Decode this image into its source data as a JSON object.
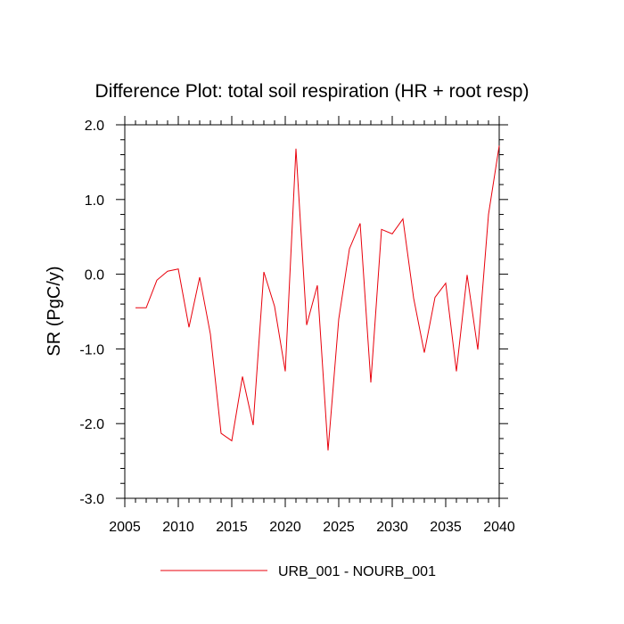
{
  "chart_data": {
    "type": "line",
    "title": "Difference Plot: total soil respiration (HR + root resp)",
    "ylabel": "SR  (PgC/y)",
    "xlabel": "",
    "xlim": [
      2006,
      2040
    ],
    "ylim": [
      -3.0,
      2.0
    ],
    "x_ticks": [
      2005,
      2010,
      2015,
      2020,
      2025,
      2030,
      2035,
      2040
    ],
    "x_tick_labels": [
      "2005",
      "2010",
      "2015",
      "2020",
      "2025",
      "2030",
      "2035",
      "2040"
    ],
    "y_ticks": [
      -3.0,
      -2.0,
      -1.0,
      0.0,
      1.0,
      2.0
    ],
    "y_tick_labels": [
      "-3.0",
      "-2.0",
      "-1.0",
      "0.0",
      "1.0",
      "2.0"
    ],
    "grid": false,
    "legend_position": "bottom-center",
    "series": [
      {
        "name": "URB_001 - NOURB_001",
        "color": "#e8000b",
        "x": [
          2006,
          2007,
          2008,
          2009,
          2010,
          2011,
          2012,
          2013,
          2014,
          2015,
          2016,
          2017,
          2018,
          2019,
          2020,
          2021,
          2022,
          2023,
          2024,
          2025,
          2026,
          2027,
          2028,
          2029,
          2030,
          2031,
          2032,
          2033,
          2034,
          2035,
          2036,
          2037,
          2038,
          2039,
          2040
        ],
        "values": [
          -0.45,
          -0.45,
          -0.08,
          0.04,
          0.07,
          -0.71,
          -0.04,
          -0.8,
          -2.13,
          -2.23,
          -1.37,
          -2.02,
          0.03,
          -0.43,
          -1.3,
          1.68,
          -0.68,
          -0.15,
          -2.36,
          -0.6,
          0.34,
          0.68,
          -1.45,
          0.6,
          0.54,
          0.74,
          -0.32,
          -1.05,
          -0.31,
          -0.12,
          -1.3,
          -0.01,
          -1.01,
          0.8,
          1.72
        ]
      }
    ]
  }
}
